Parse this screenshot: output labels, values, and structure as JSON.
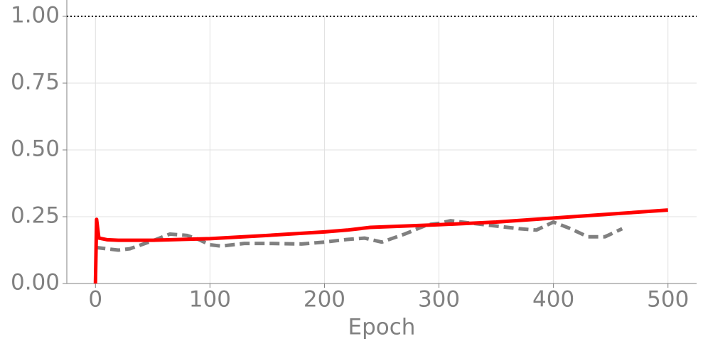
{
  "chart_data": {
    "type": "line",
    "xlabel": "Epoch",
    "xlim": [
      -25,
      525
    ],
    "ylim": [
      0,
      1
    ],
    "xticks": [
      0,
      100,
      200,
      300,
      400,
      500
    ],
    "yticks": [
      {
        "value": 0,
        "label": "0.00"
      },
      {
        "value": 0.25,
        "label": "0.25"
      },
      {
        "value": 0.5,
        "label": "0.50"
      },
      {
        "value": 0.75,
        "label": "0.75"
      },
      {
        "value": 1,
        "label": "1.00"
      }
    ],
    "grid": true,
    "reference_line": {
      "value": 1,
      "color": "#000000",
      "style": "dotted"
    },
    "series": [
      {
        "color": "#808080",
        "style": "dashed",
        "x": [
          0,
          10,
          20,
          30,
          40,
          50,
          65,
          80,
          90,
          100,
          110,
          130,
          150,
          180,
          200,
          220,
          235,
          250,
          270,
          290,
          300,
          310,
          330,
          350,
          370,
          385,
          400,
          415,
          430,
          445,
          460
        ],
        "values": [
          0.135,
          0.13,
          0.125,
          0.13,
          0.145,
          0.16,
          0.185,
          0.18,
          0.165,
          0.145,
          0.14,
          0.15,
          0.15,
          0.148,
          0.155,
          0.165,
          0.17,
          0.155,
          0.185,
          0.22,
          0.225,
          0.235,
          0.225,
          0.215,
          0.205,
          0.2,
          0.23,
          0.205,
          0.175,
          0.175,
          0.205
        ]
      },
      {
        "color": "#ff0000",
        "style": "solid",
        "x": [
          0,
          1,
          3,
          10,
          20,
          50,
          100,
          150,
          200,
          220,
          240,
          300,
          350,
          400,
          450,
          500
        ],
        "values": [
          0,
          0.24,
          0.17,
          0.164,
          0.162,
          0.162,
          0.168,
          0.18,
          0.193,
          0.2,
          0.21,
          0.22,
          0.23,
          0.245,
          0.26,
          0.275
        ]
      }
    ]
  }
}
